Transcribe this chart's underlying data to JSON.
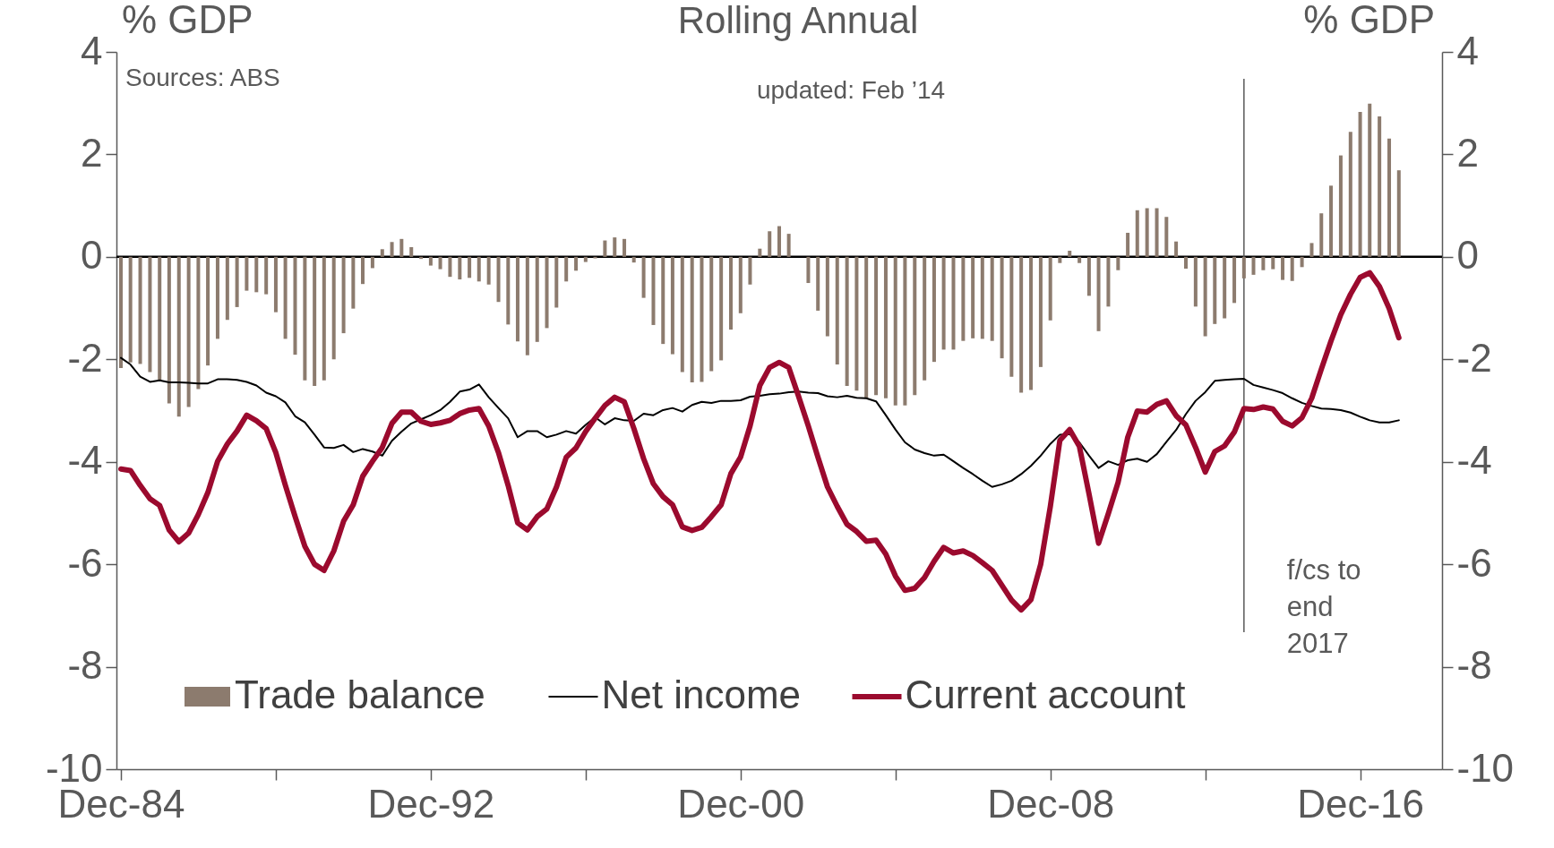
{
  "chart_data": {
    "type": "bar",
    "title": "Rolling Annual",
    "ylabel": "% GDP",
    "y2label": "% GDP",
    "annotations": [
      "Sources: ABS",
      "updated: Feb ’14"
    ],
    "x": [
      "1984-12",
      "1985-03",
      "1985-06",
      "1985-09",
      "1985-12",
      "1986-03",
      "1986-06",
      "1986-09",
      "1986-12",
      "1987-03",
      "1987-06",
      "1987-09",
      "1987-12",
      "1988-03",
      "1988-06",
      "1988-09",
      "1988-12",
      "1989-03",
      "1989-06",
      "1989-09",
      "1989-12",
      "1990-03",
      "1990-06",
      "1990-09",
      "1990-12",
      "1991-03",
      "1991-06",
      "1991-09",
      "1991-12",
      "1992-03",
      "1992-06",
      "1992-09",
      "1992-12",
      "1993-03",
      "1993-06",
      "1993-09",
      "1993-12",
      "1994-03",
      "1994-06",
      "1994-09",
      "1994-12",
      "1995-03",
      "1995-06",
      "1995-09",
      "1995-12",
      "1996-03",
      "1996-06",
      "1996-09",
      "1996-12",
      "1997-03",
      "1997-06",
      "1997-09",
      "1997-12",
      "1998-03",
      "1998-06",
      "1998-09",
      "1998-12",
      "1999-03",
      "1999-06",
      "1999-09",
      "1999-12",
      "2000-03",
      "2000-06",
      "2000-09",
      "2000-12",
      "2001-03",
      "2001-06",
      "2001-09",
      "2001-12",
      "2002-03",
      "2002-06",
      "2002-09",
      "2002-12",
      "2003-03",
      "2003-06",
      "2003-09",
      "2003-12",
      "2004-03",
      "2004-06",
      "2004-09",
      "2004-12",
      "2005-03",
      "2005-06",
      "2005-09",
      "2005-12",
      "2006-03",
      "2006-06",
      "2006-09",
      "2006-12",
      "2007-03",
      "2007-06",
      "2007-09",
      "2007-12",
      "2008-03",
      "2008-06",
      "2008-09",
      "2008-12",
      "2009-03",
      "2009-06",
      "2009-09",
      "2009-12",
      "2010-03",
      "2010-06",
      "2010-09",
      "2010-12",
      "2011-03",
      "2011-06",
      "2011-09",
      "2011-12",
      "2012-03",
      "2012-06",
      "2012-09",
      "2012-12",
      "2013-03",
      "2013-06",
      "2013-09",
      "2013-12",
      "2014-03",
      "2014-06",
      "2014-09",
      "2014-12",
      "2015-03",
      "2015-06",
      "2015-09",
      "2015-12",
      "2016-03",
      "2016-06",
      "2016-09",
      "2016-12",
      "2017-03",
      "2017-06",
      "2017-09",
      "2017-12"
    ],
    "series": [
      {
        "name": "Trade balance",
        "type": "bar",
        "color": "#8c7b6e",
        "values": [
          -2.17,
          -2.06,
          -2.09,
          -2.25,
          -2.4,
          -2.86,
          -3.12,
          -2.93,
          -2.58,
          -2.12,
          -1.6,
          -1.23,
          -0.98,
          -0.66,
          -0.69,
          -0.73,
          -1.08,
          -1.6,
          -1.91,
          -2.41,
          -2.52,
          -2.41,
          -2.0,
          -1.49,
          -1.01,
          -0.53,
          -0.22,
          0.15,
          0.29,
          0.35,
          0.19,
          -0.04,
          -0.17,
          -0.24,
          -0.39,
          -0.44,
          -0.41,
          -0.48,
          -0.54,
          -0.88,
          -1.32,
          -1.65,
          -1.92,
          -1.66,
          -1.39,
          -0.99,
          -0.48,
          -0.27,
          -0.1,
          -0.03,
          0.32,
          0.38,
          0.35,
          -0.11,
          -0.8,
          -1.33,
          -1.7,
          -1.9,
          -2.25,
          -2.45,
          -2.44,
          -2.23,
          -2.02,
          -1.42,
          -1.1,
          -0.54,
          0.16,
          0.5,
          0.6,
          0.45,
          0,
          -0.51,
          -1.05,
          -1.55,
          -2.1,
          -2.52,
          -2.61,
          -2.77,
          -2.7,
          -2.76,
          -2.9,
          -2.9,
          -2.7,
          -2.41,
          -2.05,
          -1.81,
          -1.81,
          -1.64,
          -1.59,
          -1.6,
          -1.64,
          -1.98,
          -2.34,
          -2.65,
          -2.6,
          -2.15,
          -1.24,
          -0.12,
          0.12,
          -0.12,
          -0.76,
          -1.45,
          -0.97,
          -0.26,
          0.47,
          0.91,
          0.95,
          0.95,
          0.78,
          0.3,
          -0.23,
          -0.97,
          -1.55,
          -1.31,
          -1.2,
          -0.9,
          -0.42,
          -0.35,
          -0.26,
          -0.24,
          -0.45,
          -0.47,
          -0.2,
          0.27,
          0.85,
          1.39,
          1.98,
          2.44,
          2.83,
          2.99,
          2.74,
          2.31,
          1.69
        ]
      },
      {
        "name": "Net income",
        "type": "line",
        "color": "#000000",
        "values": [
          -1.97,
          -2.1,
          -2.34,
          -2.44,
          -2.41,
          -2.45,
          -2.45,
          -2.46,
          -2.47,
          -2.47,
          -2.39,
          -2.39,
          -2.4,
          -2.44,
          -2.51,
          -2.65,
          -2.72,
          -2.84,
          -3.11,
          -3.23,
          -3.47,
          -3.72,
          -3.73,
          -3.67,
          -3.81,
          -3.75,
          -3.8,
          -3.88,
          -3.59,
          -3.41,
          -3.25,
          -3.17,
          -3.09,
          -2.99,
          -2.83,
          -2.63,
          -2.59,
          -2.49,
          -2.74,
          -2.95,
          -3.15,
          -3.52,
          -3.4,
          -3.4,
          -3.52,
          -3.47,
          -3.4,
          -3.45,
          -3.28,
          -3.13,
          -3.27,
          -3.15,
          -3.19,
          -3.2,
          -3.06,
          -3.09,
          -2.99,
          -2.95,
          -3.02,
          -2.89,
          -2.83,
          -2.85,
          -2.81,
          -2.81,
          -2.8,
          -2.73,
          -2.71,
          -2.68,
          -2.67,
          -2.64,
          -2.63,
          -2.65,
          -2.66,
          -2.72,
          -2.74,
          -2.71,
          -2.75,
          -2.76,
          -2.82,
          -3.09,
          -3.37,
          -3.62,
          -3.76,
          -3.83,
          -3.88,
          -3.86,
          -3.99,
          -4.12,
          -4.24,
          -4.37,
          -4.49,
          -4.44,
          -4.37,
          -4.24,
          -4.08,
          -3.88,
          -3.65,
          -3.47,
          -3.46,
          -3.62,
          -3.88,
          -4.12,
          -3.99,
          -4.06,
          -3.97,
          -3.94,
          -4.0,
          -3.85,
          -3.61,
          -3.38,
          -3.07,
          -2.81,
          -2.64,
          -2.42,
          -2.4,
          -2.39,
          -2.38,
          -2.5,
          -2.55,
          -2.6,
          -2.66,
          -2.76,
          -2.85,
          -2.91,
          -2.96,
          -2.97,
          -2.99,
          -3.04,
          -3.12,
          -3.19,
          -3.23,
          -3.23,
          -3.19
        ]
      },
      {
        "name": "Current account",
        "type": "line",
        "color": "#9b0a2e",
        "values": [
          -4.14,
          -4.17,
          -4.46,
          -4.72,
          -4.85,
          -5.33,
          -5.56,
          -5.39,
          -5.03,
          -4.6,
          -3.99,
          -3.65,
          -3.4,
          -3.09,
          -3.2,
          -3.35,
          -3.82,
          -4.46,
          -5.07,
          -5.65,
          -6.0,
          -6.12,
          -5.74,
          -5.16,
          -4.84,
          -4.28,
          -3.99,
          -3.72,
          -3.25,
          -3.03,
          -3.03,
          -3.21,
          -3.27,
          -3.24,
          -3.19,
          -3.06,
          -2.99,
          -2.96,
          -3.3,
          -3.82,
          -4.46,
          -5.19,
          -5.33,
          -5.07,
          -4.92,
          -4.49,
          -3.91,
          -3.73,
          -3.41,
          -3.15,
          -2.9,
          -2.74,
          -2.83,
          -3.35,
          -3.94,
          -4.43,
          -4.68,
          -4.84,
          -5.27,
          -5.34,
          -5.28,
          -5.07,
          -4.84,
          -4.23,
          -3.91,
          -3.3,
          -2.51,
          -2.16,
          -2.06,
          -2.16,
          -2.72,
          -3.3,
          -3.91,
          -4.49,
          -4.87,
          -5.22,
          -5.36,
          -5.55,
          -5.53,
          -5.8,
          -6.23,
          -6.51,
          -6.47,
          -6.26,
          -5.94,
          -5.67,
          -5.78,
          -5.74,
          -5.83,
          -5.97,
          -6.12,
          -6.41,
          -6.7,
          -6.89,
          -6.69,
          -6.0,
          -4.87,
          -3.58,
          -3.37,
          -3.7,
          -4.63,
          -5.59,
          -5.01,
          -4.4,
          -3.52,
          -3.01,
          -3.03,
          -2.88,
          -2.81,
          -3.1,
          -3.28,
          -3.72,
          -4.2,
          -3.8,
          -3.69,
          -3.42,
          -2.96,
          -2.98,
          -2.93,
          -2.97,
          -3.21,
          -3.3,
          -3.14,
          -2.76,
          -2.19,
          -1.64,
          -1.13,
          -0.73,
          -0.4,
          -0.31,
          -0.58,
          -1.01,
          -1.58
        ]
      }
    ],
    "xlim": [
      "1984-12",
      "2018-12"
    ],
    "xticks": [
      {
        "value": "1984-12",
        "label": "Dec-84"
      },
      {
        "value": "1988-12",
        "label": null
      },
      {
        "value": "1992-12",
        "label": "Dec-92"
      },
      {
        "value": "1996-12",
        "label": null
      },
      {
        "value": "2000-12",
        "label": "Dec-00"
      },
      {
        "value": "2004-12",
        "label": null
      },
      {
        "value": "2008-12",
        "label": "Dec-08"
      },
      {
        "value": "2012-12",
        "label": null
      },
      {
        "value": "2016-12",
        "label": "Dec-16"
      }
    ],
    "ylim": [
      -10,
      4
    ],
    "yticks": [
      -10,
      -8,
      -6,
      -4,
      -2,
      0,
      2,
      4
    ],
    "y2lim": [
      -10,
      4
    ],
    "y2ticks": [
      -10,
      -8,
      -6,
      -4,
      -2,
      0,
      2,
      4
    ],
    "ref_lines": [
      {
        "axis": "y",
        "value": 0,
        "color": "#000000"
      },
      {
        "axis": "x",
        "value": "2013-12",
        "label": "f/cs to end 2017",
        "color": "#595959"
      }
    ],
    "legend": "bottom left"
  }
}
